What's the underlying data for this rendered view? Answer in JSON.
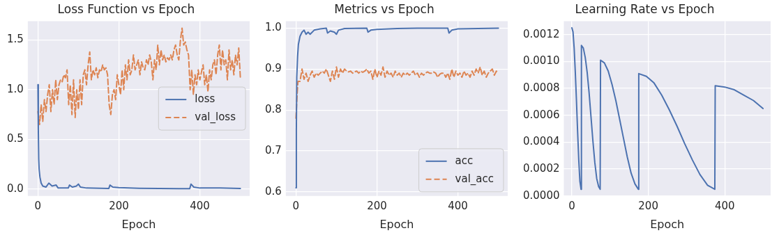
{
  "chart_data": [
    {
      "type": "line",
      "title": "Loss Function vs Epoch",
      "xlabel": "Epoch",
      "xlim": [
        -25,
        523
      ],
      "xticks": [
        0,
        200,
        400
      ],
      "ylim": [
        -0.07,
        1.69
      ],
      "yticks": [
        {
          "value": 0,
          "label": "0.0"
        },
        {
          "value": 0.5,
          "label": "0.5"
        },
        {
          "value": 1,
          "label": "1.0"
        },
        {
          "value": 1.5,
          "label": "1.5"
        }
      ],
      "grid": true,
      "legend": "right",
      "series": [
        {
          "name": "loss",
          "color": "#4c72b0",
          "line_style": "solid",
          "x": [
            0,
            1,
            2,
            3,
            5,
            8,
            12,
            20,
            27,
            35,
            45,
            50,
            75,
            78,
            85,
            95,
            100,
            105,
            120,
            175,
            178,
            185,
            200,
            250,
            300,
            375,
            378,
            385,
            400,
            450,
            500
          ],
          "values": [
            1.05,
            0.6,
            0.3,
            0.2,
            0.12,
            0.06,
            0.03,
            0.02,
            0.06,
            0.03,
            0.04,
            0.01,
            0.01,
            0.04,
            0.02,
            0.03,
            0.05,
            0.02,
            0.01,
            0.005,
            0.04,
            0.02,
            0.015,
            0.008,
            0.005,
            0.003,
            0.05,
            0.02,
            0.01,
            0.01,
            0.005
          ]
        },
        {
          "name": "val_loss",
          "color": "#dd8452",
          "line_style": "dashed",
          "x": [
            0,
            4,
            8,
            12,
            16,
            20,
            24,
            28,
            32,
            36,
            40,
            44,
            48,
            52,
            56,
            60,
            64,
            68,
            72,
            76,
            80,
            84,
            88,
            92,
            96,
            100,
            104,
            108,
            112,
            116,
            120,
            124,
            128,
            132,
            136,
            140,
            144,
            148,
            152,
            156,
            160,
            164,
            168,
            172,
            176,
            180,
            184,
            188,
            192,
            196,
            200,
            204,
            208,
            212,
            216,
            220,
            224,
            228,
            232,
            236,
            240,
            244,
            248,
            252,
            256,
            260,
            264,
            268,
            272,
            276,
            280,
            284,
            288,
            292,
            296,
            300,
            304,
            308,
            312,
            316,
            320,
            324,
            328,
            332,
            336,
            340,
            344,
            348,
            352,
            356,
            360,
            364,
            368,
            372,
            376,
            380,
            384,
            388,
            392,
            396,
            400,
            404,
            408,
            412,
            416,
            420,
            424,
            428,
            432,
            436,
            440,
            444,
            448,
            452,
            456,
            460,
            464,
            468,
            472,
            476,
            480,
            484,
            488,
            492,
            496,
            500
          ],
          "values": [
            0.78,
            0.65,
            0.85,
            0.68,
            0.9,
            0.78,
            0.95,
            1.05,
            0.78,
            1.0,
            0.85,
            1.1,
            0.9,
            1.05,
            1.1,
            1.08,
            1.15,
            1.12,
            1.2,
            0.85,
            1.05,
            0.75,
            1.1,
            0.72,
            1.0,
            0.8,
            1.1,
            0.85,
            1.15,
            1.2,
            1.05,
            1.25,
            1.38,
            1.1,
            1.2,
            1.15,
            1.22,
            1.12,
            1.2,
            1.18,
            1.25,
            1.2,
            1.22,
            1.15,
            0.85,
            0.75,
            0.95,
            1.0,
            0.9,
            1.15,
            1.05,
            0.95,
            1.2,
            1.0,
            1.25,
            1.1,
            1.3,
            1.15,
            1.2,
            1.35,
            1.2,
            1.25,
            1.3,
            1.15,
            1.28,
            1.22,
            1.2,
            1.3,
            1.25,
            1.35,
            1.28,
            1.1,
            1.3,
            1.2,
            1.45,
            1.25,
            1.4,
            1.3,
            1.35,
            1.28,
            1.32,
            1.3,
            1.35,
            1.3,
            1.4,
            1.45,
            1.35,
            1.3,
            1.5,
            1.62,
            1.45,
            1.48,
            1.4,
            1.35,
            1.0,
            1.2,
            0.95,
            1.15,
            1.05,
            1.2,
            1.1,
            1.18,
            1.25,
            1.05,
            1.15,
            0.98,
            1.2,
            1.1,
            1.25,
            1.3,
            1.15,
            1.35,
            1.45,
            1.2,
            1.4,
            1.25,
            1.3,
            1.1,
            1.4,
            1.2,
            1.3,
            1.15,
            1.35,
            1.25,
            1.42,
            1.12
          ]
        }
      ]
    },
    {
      "type": "line",
      "title": "Metrics vs Epoch",
      "xlabel": "Epoch",
      "xlim": [
        -25,
        523
      ],
      "xticks": [
        0,
        200,
        400
      ],
      "ylim": [
        0.59,
        1.017
      ],
      "yticks": [
        {
          "value": 0.6,
          "label": "0.6"
        },
        {
          "value": 0.7,
          "label": "0.7"
        },
        {
          "value": 0.8,
          "label": "0.8"
        },
        {
          "value": 0.9,
          "label": "0.9"
        },
        {
          "value": 1,
          "label": "1.0"
        }
      ],
      "grid": true,
      "legend": "bottom right",
      "series": [
        {
          "name": "acc",
          "color": "#4c72b0",
          "line_style": "solid",
          "x": [
            0,
            1,
            2,
            4,
            6,
            10,
            15,
            20,
            25,
            30,
            35,
            45,
            60,
            75,
            78,
            85,
            95,
            100,
            105,
            120,
            175,
            178,
            185,
            200,
            250,
            300,
            375,
            378,
            385,
            400,
            450,
            500
          ],
          "values": [
            0.61,
            0.75,
            0.88,
            0.93,
            0.96,
            0.98,
            0.99,
            0.995,
            0.985,
            0.99,
            0.985,
            0.995,
            0.998,
            1.0,
            0.988,
            0.993,
            0.99,
            0.985,
            0.995,
            0.999,
            1.0,
            0.99,
            0.995,
            0.997,
            0.999,
            1.0,
            1.0,
            0.988,
            0.995,
            0.998,
            0.999,
            1.0
          ]
        },
        {
          "name": "val_acc",
          "color": "#dd8452",
          "line_style": "dashed",
          "x": [
            0,
            3,
            5,
            10,
            15,
            20,
            25,
            30,
            35,
            40,
            45,
            50,
            55,
            60,
            65,
            70,
            75,
            80,
            85,
            90,
            95,
            100,
            105,
            110,
            115,
            120,
            125,
            130,
            135,
            140,
            145,
            150,
            155,
            160,
            165,
            170,
            175,
            180,
            185,
            190,
            195,
            200,
            205,
            210,
            215,
            220,
            225,
            230,
            235,
            240,
            245,
            250,
            255,
            260,
            265,
            270,
            275,
            280,
            285,
            290,
            295,
            300,
            305,
            310,
            315,
            320,
            325,
            330,
            335,
            340,
            345,
            350,
            355,
            360,
            365,
            370,
            375,
            380,
            385,
            390,
            395,
            400,
            405,
            410,
            415,
            420,
            425,
            430,
            435,
            440,
            445,
            450,
            455,
            460,
            465,
            470,
            475,
            480,
            485,
            490,
            495,
            500
          ],
          "values": [
            0.78,
            0.84,
            0.87,
            0.87,
            0.9,
            0.875,
            0.89,
            0.87,
            0.885,
            0.895,
            0.88,
            0.89,
            0.885,
            0.89,
            0.895,
            0.89,
            0.9,
            0.885,
            0.87,
            0.895,
            0.875,
            0.905,
            0.88,
            0.9,
            0.89,
            0.9,
            0.895,
            0.893,
            0.895,
            0.89,
            0.893,
            0.895,
            0.89,
            0.895,
            0.892,
            0.895,
            0.9,
            0.89,
            0.895,
            0.875,
            0.9,
            0.88,
            0.895,
            0.885,
            0.905,
            0.88,
            0.895,
            0.885,
            0.89,
            0.88,
            0.895,
            0.885,
            0.89,
            0.88,
            0.89,
            0.885,
            0.89,
            0.885,
            0.89,
            0.895,
            0.885,
            0.89,
            0.88,
            0.89,
            0.885,
            0.89,
            0.893,
            0.89,
            0.89,
            0.893,
            0.89,
            0.88,
            0.887,
            0.89,
            0.89,
            0.88,
            0.89,
            0.875,
            0.9,
            0.88,
            0.895,
            0.885,
            0.89,
            0.88,
            0.895,
            0.885,
            0.89,
            0.88,
            0.895,
            0.885,
            0.9,
            0.89,
            0.905,
            0.885,
            0.895,
            0.88,
            0.89,
            0.895,
            0.9,
            0.885,
            0.895,
            0.89
          ]
        }
      ]
    },
    {
      "type": "line",
      "title": "Learning Rate vs Epoch",
      "xlabel": "Epoch",
      "xlim": [
        -21,
        520
      ],
      "xticks": [
        0,
        200,
        400
      ],
      "ylim": [
        0,
        0.0013
      ],
      "yticks": [
        {
          "value": 0,
          "label": "0.0000"
        },
        {
          "value": 0.0002,
          "label": "0.0002"
        },
        {
          "value": 0.0004,
          "label": "0.0004"
        },
        {
          "value": 0.0006,
          "label": "0.0006"
        },
        {
          "value": 0.0008,
          "label": "0.0008"
        },
        {
          "value": 0.001,
          "label": "0.0010"
        },
        {
          "value": 0.0012,
          "label": "0.0012"
        }
      ],
      "grid": true,
      "series": [
        {
          "color": "#4c72b0",
          "line_style": "solid",
          "x": [
            0,
            3,
            6,
            9,
            12,
            15,
            18,
            21,
            24,
            25,
            30,
            35,
            40,
            45,
            50,
            55,
            60,
            65,
            70,
            74,
            75,
            85,
            95,
            105,
            115,
            125,
            135,
            145,
            155,
            165,
            174,
            175,
            195,
            215,
            235,
            255,
            275,
            295,
            315,
            335,
            355,
            374,
            375,
            400,
            425,
            450,
            475,
            500
          ],
          "values": [
            0.00125,
            0.00122,
            0.0011,
            0.00092,
            0.00071,
            0.00048,
            0.00027,
            0.00011,
            5e-05,
            0.00112,
            0.0011,
            0.00103,
            0.00092,
            0.00077,
            0.00059,
            0.00041,
            0.00025,
            0.00013,
            7e-05,
            5e-05,
            0.00101,
            0.00099,
            0.00093,
            0.00083,
            0.00071,
            0.00057,
            0.00043,
            0.00029,
            0.00017,
            9e-05,
            5e-05,
            0.00091,
            0.00089,
            0.00084,
            0.00075,
            0.00064,
            0.00052,
            0.00039,
            0.00027,
            0.00016,
            8e-05,
            5e-05,
            0.00082,
            0.00081,
            0.00079,
            0.00075,
            0.00071,
            0.00065
          ]
        }
      ]
    }
  ]
}
